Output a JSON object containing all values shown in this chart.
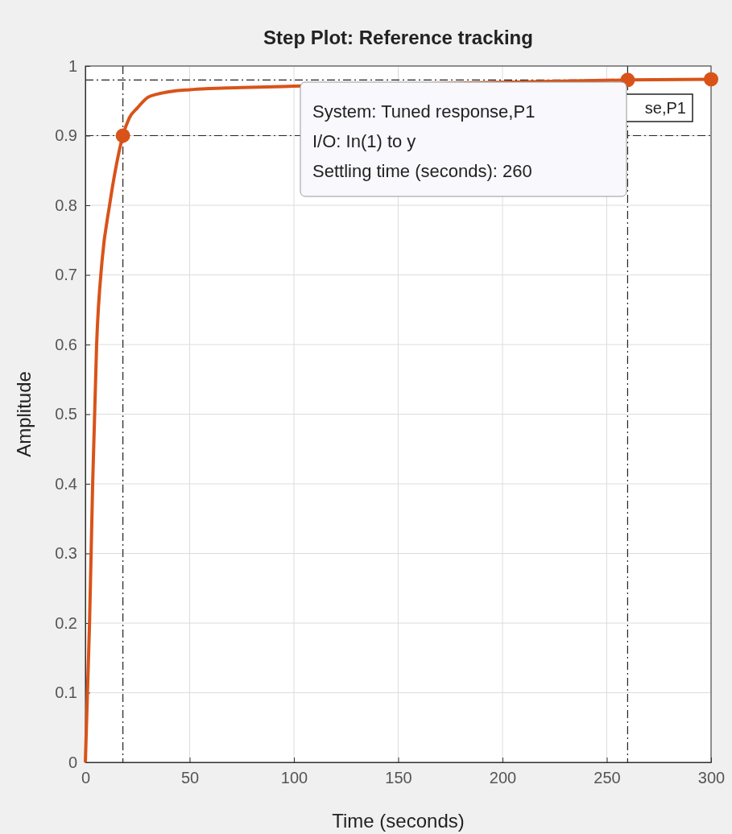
{
  "chart_data": {
    "type": "line",
    "title": "Step Plot: Reference tracking",
    "xlabel": "Time (seconds)",
    "ylabel": "Amplitude",
    "xlim": [
      0,
      300
    ],
    "xticks": [
      0,
      50,
      100,
      150,
      200,
      250,
      300
    ],
    "ylim": [
      0,
      1
    ],
    "yticks": [
      0,
      0.1,
      0.2,
      0.3,
      0.4,
      0.5,
      0.6,
      0.7,
      0.8,
      0.9,
      1
    ],
    "grid": true,
    "series": [
      {
        "color": "#d95319",
        "marker": "none",
        "x": [
          0,
          1,
          2,
          3.5,
          5.4,
          8,
          11.6,
          15,
          18,
          21,
          25,
          30,
          35,
          40,
          50,
          75,
          100,
          260,
          300
        ],
        "values": [
          0,
          0.1,
          0.2,
          0.4,
          0.6,
          0.72,
          0.8,
          0.86,
          0.9,
          0.925,
          0.94,
          0.955,
          0.96,
          0.963,
          0.966,
          0.969,
          0.971,
          0.98,
          0.981
        ]
      },
      {
        "type": "scatter",
        "color": "#d95319",
        "marker": "circle",
        "x": [
          18,
          260,
          300
        ],
        "values": [
          0.9,
          0.98,
          0.981
        ]
      }
    ],
    "ref_lines": [
      {
        "axis": "y",
        "value": 0.98,
        "line_style": "dashdot"
      },
      {
        "axis": "y",
        "value": 0.9,
        "line_style": "dashdot"
      },
      {
        "axis": "x",
        "value": 18,
        "line_style": "dashdot"
      },
      {
        "axis": "x",
        "value": 260,
        "line_style": "dashdot"
      }
    ],
    "annotations": [
      "se,P1",
      "System: Tuned response,P1",
      "I/O: In(1) to y",
      "Settling time (seconds): 260"
    ]
  }
}
